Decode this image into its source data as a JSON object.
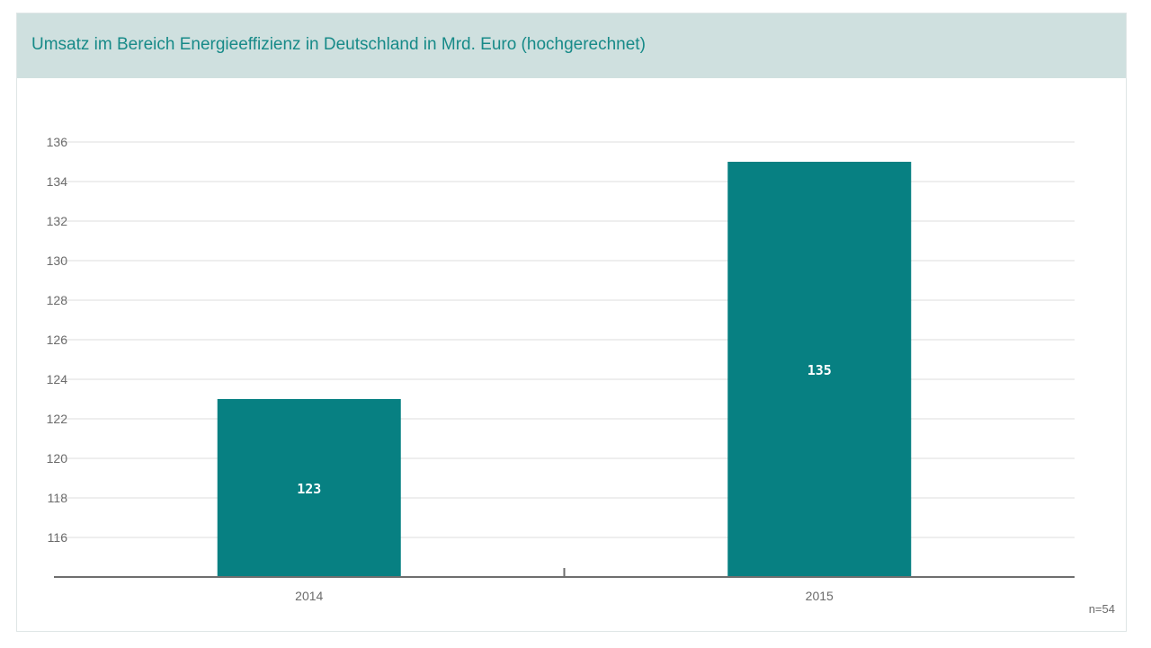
{
  "colors": {
    "bar": "#078082",
    "header_bg": "#cfe0df",
    "title": "#178a88",
    "grid": "#dcdcdc",
    "axis": "#6e6e6e",
    "tick_text": "#6b6b6b",
    "bar_label": "#ffffff"
  },
  "chart_data": {
    "type": "bar",
    "title": "Umsatz im Bereich Energieeffizienz in Deutschland in Mrd. Euro (hochgerechnet)",
    "categories": [
      "2014",
      "2015"
    ],
    "values": [
      123,
      135
    ],
    "data_labels": [
      "123",
      "135"
    ],
    "yticks": [
      116,
      118,
      120,
      122,
      124,
      126,
      128,
      130,
      132,
      134,
      136
    ],
    "ylim": [
      114,
      136
    ],
    "grid": true,
    "xlabel": "",
    "ylabel": ""
  },
  "footnote": "n=54"
}
